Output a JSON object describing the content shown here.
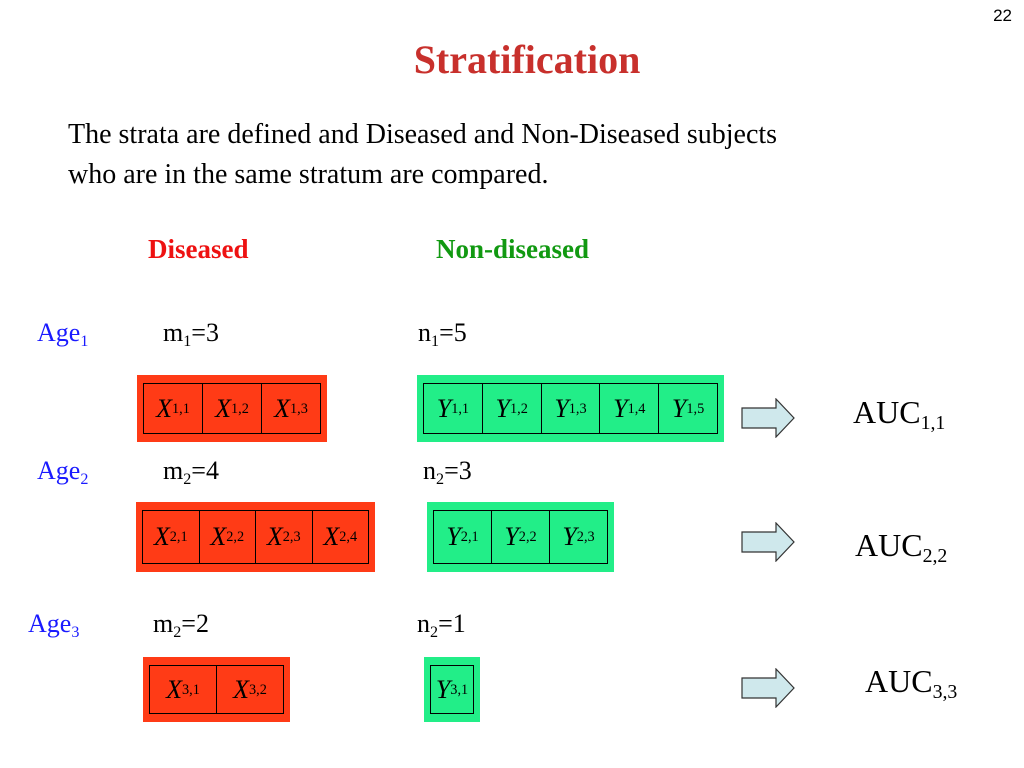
{
  "page_number": "22",
  "title": "Stratification",
  "paragraph": {
    "lines": [
      "The strata are defined and Diseased and Non-Diseased subjects",
      "who are in the same stratum are compared."
    ]
  },
  "headers": {
    "diseased": "Diseased",
    "non_diseased": "Non-diseased"
  },
  "rows": [
    {
      "age": {
        "base": "Age",
        "sub": "1"
      },
      "m": {
        "base": "m",
        "sub": "1",
        "rest": "=3"
      },
      "n": {
        "base": "n",
        "sub": "1",
        "rest": "=5"
      },
      "x_cells": [
        {
          "base": "X",
          "sub": "1,1"
        },
        {
          "base": "X",
          "sub": "1,2"
        },
        {
          "base": "X",
          "sub": "1,3"
        }
      ],
      "y_cells": [
        {
          "base": "Y",
          "sub": "1,1"
        },
        {
          "base": "Y",
          "sub": "1,2"
        },
        {
          "base": "Y",
          "sub": "1,3"
        },
        {
          "base": "Y",
          "sub": "1,4"
        },
        {
          "base": "Y",
          "sub": "1,5"
        }
      ],
      "auc": {
        "base": "AUC",
        "sub": "1,1"
      }
    },
    {
      "age": {
        "base": "Age",
        "sub": "2"
      },
      "m": {
        "base": "m",
        "sub": "2",
        "rest": "=4"
      },
      "n": {
        "base": "n",
        "sub": "2",
        "rest": "=3"
      },
      "x_cells": [
        {
          "base": "X",
          "sub": "2,1"
        },
        {
          "base": "X",
          "sub": "2,2"
        },
        {
          "base": "X",
          "sub": "2,3"
        },
        {
          "base": "X",
          "sub": "2,4"
        }
      ],
      "y_cells": [
        {
          "base": "Y",
          "sub": "2,1"
        },
        {
          "base": "Y",
          "sub": "2,2"
        },
        {
          "base": "Y",
          "sub": "2,3"
        }
      ],
      "auc": {
        "base": "AUC",
        "sub": "2,2"
      }
    },
    {
      "age": {
        "base": "Age",
        "sub": "3"
      },
      "m": {
        "base": "m",
        "sub": "2",
        "rest": "=2"
      },
      "n": {
        "base": "n",
        "sub": "2",
        "rest": "=1"
      },
      "x_cells": [
        {
          "base": "X",
          "sub": "3,1"
        },
        {
          "base": "X",
          "sub": "3,2"
        }
      ],
      "y_cells": [
        {
          "base": "Y",
          "sub": "3,1"
        }
      ],
      "auc": {
        "base": "AUC",
        "sub": "3,3"
      }
    }
  ]
}
